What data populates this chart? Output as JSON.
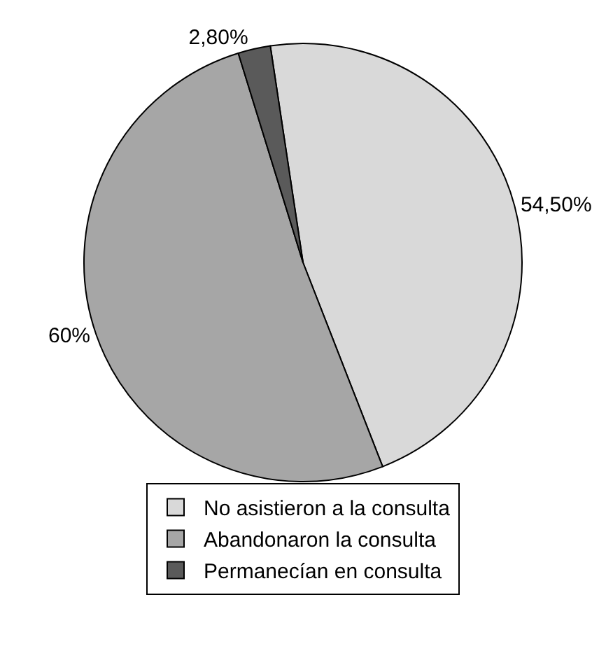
{
  "chart_data": {
    "type": "pie",
    "categories": [
      "No asistieron a la consulta",
      "Abandonaron la consulta",
      "Permanecían en consulta"
    ],
    "values": [
      54.5,
      60,
      2.8
    ],
    "value_labels": [
      "54,50%",
      "60%",
      "2,80%"
    ],
    "colors": [
      "#d9d9d9",
      "#a6a6a6",
      "#5a5a5a"
    ],
    "legend": "bottom"
  }
}
